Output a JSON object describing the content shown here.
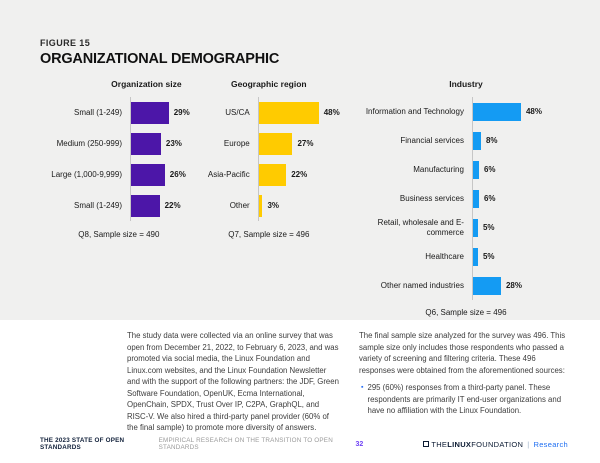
{
  "figure": {
    "eyebrow": "FIGURE 15",
    "title": "ORGANIZATIONAL DEMOGRAPHIC"
  },
  "chart_data": [
    {
      "type": "bar",
      "orientation": "horizontal",
      "title": "Organization size",
      "categories": [
        "Small (1-249)",
        "Medium (250-999)",
        "Large (1,000-9,999)",
        "Small (1-249)"
      ],
      "values": [
        29,
        23,
        26,
        22
      ],
      "value_suffix": "%",
      "bar_color": "#4c16a8",
      "xlim": [
        0,
        55
      ],
      "grid": false,
      "footnote": "Q8, Sample size = 490"
    },
    {
      "type": "bar",
      "orientation": "horizontal",
      "title": "Geographic region",
      "categories": [
        "US/CA",
        "Europe",
        "Asia-Pacific",
        "Other"
      ],
      "values": [
        48,
        27,
        22,
        3
      ],
      "value_suffix": "%",
      "bar_color": "#ffcb00",
      "xlim": [
        0,
        68
      ],
      "grid": false,
      "footnote": "Q7, Sample size = 496"
    },
    {
      "type": "bar",
      "orientation": "horizontal",
      "title": "Industry",
      "categories": [
        "Information and Technology",
        "Financial services",
        "Manufacturing",
        "Business services",
        "Retail, wholesale and E-commerce",
        "Healthcare",
        "Other named industries"
      ],
      "values": [
        48,
        8,
        6,
        6,
        5,
        5,
        28
      ],
      "value_suffix": "%",
      "bar_color": "#149bf3",
      "xlim": [
        0,
        75
      ],
      "grid": false,
      "footnote": "Q6, Sample size = 496"
    }
  ],
  "body": {
    "left_paragraph": "The study data were collected via an online survey that was open from December 21, 2022, to February 6, 2023, and was promoted via social media, the Linux Foundation and Linux.com websites, and the Linux Foundation Newsletter and with the support of the following partners: the JDF, Green Software Foundation, OpenUK, Ecma International, OpenChain, SPDX, Trust Over IP, C2PA, GraphQL, and RISC-V. We also hired a third-party panel provider (60% of the final sample) to promote more diversity of answers.",
    "right_paragraph": "The final sample size analyzed for the survey was 496. This sample size only includes those respondents who passed a variety of screening and filtering criteria. These 496 responses were obtained from the aforementioned sources:",
    "bullet": "295 (60%) responses from a third-party panel. These respondents are primarily IT end-user organizations and have no affiliation with the Linux Foundation.",
    "bullet_marker": "▪"
  },
  "footer": {
    "report_title": "THE 2023 STATE OF OPEN STANDARDS",
    "report_subtitle": "EMPIRICAL RESEARCH ON THE TRANSITION TO OPEN STANDARDS",
    "page_number": "32",
    "logo": {
      "the": "THE",
      "linux": "LINUX",
      "foundation": "FOUNDATION",
      "divider": "|",
      "division": "Research"
    }
  },
  "colors": {
    "figure_background": "#f0f0ef",
    "org_size_bar": "#4c16a8",
    "geo_bar": "#ffcb00",
    "industry_bar": "#149bf3",
    "page_number": "#6f42f5",
    "research_blue": "#1f6ff2"
  }
}
